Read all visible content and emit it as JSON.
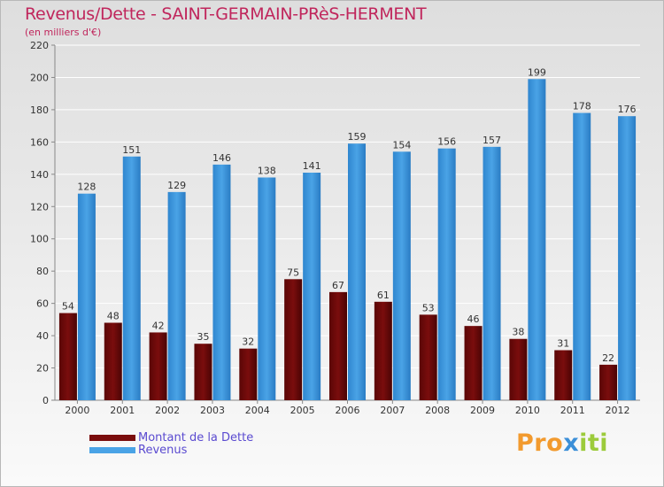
{
  "header": {
    "title": "Revenus/Dette - SAINT-GERMAIN-PRèS-HERMENT",
    "subtitle": "(en milliers d'€)"
  },
  "legend": {
    "debt_label": "Montant de la Dette",
    "revenue_label": "Revenus"
  },
  "brand": {
    "letters": [
      "P",
      "r",
      "o",
      "x",
      "i",
      "t",
      "i"
    ]
  },
  "colors": {
    "title": "#c0265c",
    "debt": "#7a0d0d",
    "revenue": "#4aa3e6",
    "legend_text": "#5a4ad0",
    "brand": [
      "#f29a2e",
      "#f29a2e",
      "#f29a2e",
      "#3b8fd8",
      "#9ccb3b",
      "#9ccb3b",
      "#9ccb3b"
    ]
  },
  "chart_data": {
    "type": "bar",
    "categories": [
      "2000",
      "2001",
      "2002",
      "2003",
      "2004",
      "2005",
      "2006",
      "2007",
      "2008",
      "2009",
      "2010",
      "2011",
      "2012"
    ],
    "series": [
      {
        "name": "Montant de la Dette",
        "values": [
          54,
          48,
          42,
          35,
          32,
          75,
          67,
          61,
          53,
          46,
          38,
          31,
          22
        ]
      },
      {
        "name": "Revenus",
        "values": [
          128,
          151,
          129,
          146,
          138,
          141,
          159,
          154,
          156,
          157,
          199,
          178,
          176
        ]
      }
    ],
    "y_ticks": [
      0,
      20,
      40,
      60,
      80,
      100,
      120,
      140,
      160,
      180,
      200,
      220
    ],
    "ylim": [
      0,
      220
    ],
    "grid": true,
    "legend_position": "bottom-left"
  }
}
